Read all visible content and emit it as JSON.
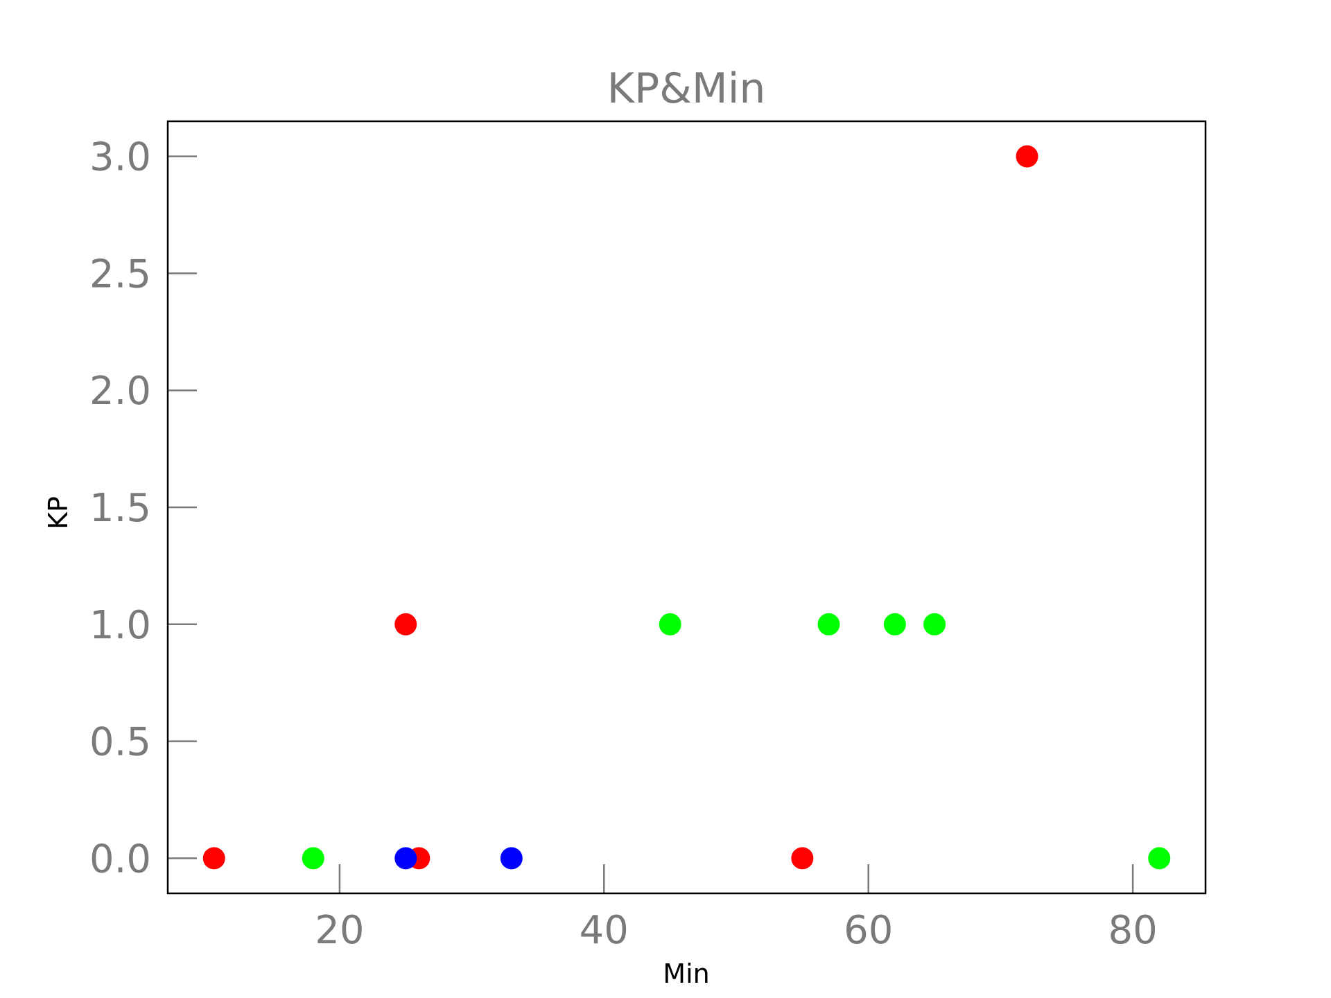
{
  "chart_data": {
    "type": "scatter",
    "title": "KP&Min",
    "xlabel": "Min",
    "ylabel": "KP",
    "xlim": [
      7.0,
      85.5
    ],
    "ylim": [
      -0.15,
      3.15
    ],
    "xticks": [
      20,
      40,
      60,
      80
    ],
    "yticks": [
      0.0,
      0.5,
      1.0,
      1.5,
      2.0,
      2.5,
      3.0
    ],
    "xtick_labels": [
      "20",
      "40",
      "60",
      "80"
    ],
    "ytick_labels": [
      "0.0",
      "0.5",
      "1.0",
      "1.5",
      "2.0",
      "2.5",
      "3.0"
    ],
    "grid": false,
    "points": [
      {
        "x": 10.5,
        "y": 0,
        "color": "#ff0000"
      },
      {
        "x": 18,
        "y": 0,
        "color": "#00ff00"
      },
      {
        "x": 25,
        "y": 1,
        "color": "#ff0000"
      },
      {
        "x": 26,
        "y": 0,
        "color": "#ff0000"
      },
      {
        "x": 25,
        "y": 0,
        "color": "#0000ff"
      },
      {
        "x": 33,
        "y": 0,
        "color": "#0000ff"
      },
      {
        "x": 45,
        "y": 1,
        "color": "#00ff00"
      },
      {
        "x": 55,
        "y": 0,
        "color": "#ff0000"
      },
      {
        "x": 57,
        "y": 1,
        "color": "#00ff00"
      },
      {
        "x": 62,
        "y": 1,
        "color": "#00ff00"
      },
      {
        "x": 65,
        "y": 1,
        "color": "#00ff00"
      },
      {
        "x": 72,
        "y": 3,
        "color": "#ff0000"
      },
      {
        "x": 82,
        "y": 0,
        "color": "#00ff00"
      }
    ]
  }
}
